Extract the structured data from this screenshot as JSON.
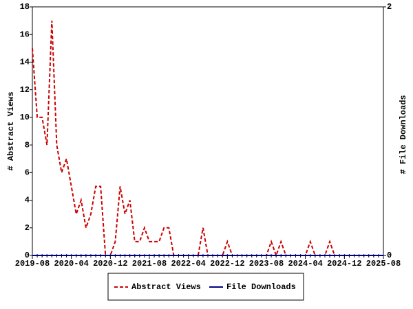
{
  "chart_data": {
    "type": "line",
    "y_label": "# Abstract Views",
    "y2_label": "# File Downloads",
    "categories": [
      "2019-08",
      null,
      null,
      null,
      null,
      null,
      null,
      null,
      "2020-04",
      null,
      null,
      null,
      null,
      null,
      null,
      null,
      "2020-12",
      null,
      null,
      null,
      null,
      null,
      null,
      null,
      "2021-08",
      null,
      null,
      null,
      null,
      null,
      null,
      null,
      "2022-04",
      null,
      null,
      null,
      null,
      null,
      null,
      null,
      "2022-12",
      null,
      null,
      null,
      null,
      null,
      null,
      null,
      "2023-08",
      null,
      null,
      null,
      null,
      null,
      null,
      null,
      "2024-04",
      null,
      null,
      null,
      null,
      null,
      null,
      null,
      "2024-12",
      null,
      null,
      null,
      null,
      null,
      null,
      null,
      "2025-08"
    ],
    "series": [
      {
        "name": "Abstract Views",
        "color": "#cc0000",
        "dashed": true,
        "values": [
          15,
          10,
          10,
          8,
          17,
          8,
          6,
          7,
          5,
          3,
          4,
          2,
          3,
          5,
          5,
          0,
          0,
          1,
          5,
          3,
          4,
          1,
          1,
          2,
          1,
          1,
          1,
          2,
          2,
          0,
          0,
          0,
          0,
          0,
          0,
          2,
          0,
          0,
          0,
          0,
          1,
          0,
          0,
          0,
          0,
          0,
          0,
          0,
          0,
          1,
          0,
          1,
          0,
          0,
          0,
          0,
          0,
          1,
          0,
          0,
          0,
          1,
          0,
          0,
          0,
          0,
          0,
          0,
          0,
          0,
          0,
          0,
          0
        ]
      },
      {
        "name": "File Downloads",
        "color": "#000080",
        "dashed": false,
        "axis": "y2",
        "values": [
          0,
          0,
          0,
          0,
          0,
          0,
          0,
          0,
          0,
          0,
          0,
          0,
          0,
          0,
          0,
          0,
          0,
          0,
          0,
          0,
          0,
          0,
          0,
          0,
          0,
          0,
          0,
          0,
          0,
          0,
          0,
          0,
          0,
          0,
          0,
          0,
          0,
          0,
          0,
          0,
          0,
          0,
          0,
          0,
          0,
          0,
          0,
          0,
          0,
          0,
          0,
          0,
          0,
          0,
          0,
          0,
          0,
          0,
          0,
          0,
          0,
          0,
          0,
          0,
          0,
          0,
          0,
          0,
          0,
          0,
          0,
          0,
          0
        ]
      }
    ],
    "ylim": [
      0,
      18
    ],
    "yticks": [
      0,
      2,
      4,
      6,
      8,
      10,
      12,
      14,
      16,
      18
    ],
    "y2lim": [
      0,
      2
    ],
    "y2ticks": [
      0,
      2
    ]
  }
}
